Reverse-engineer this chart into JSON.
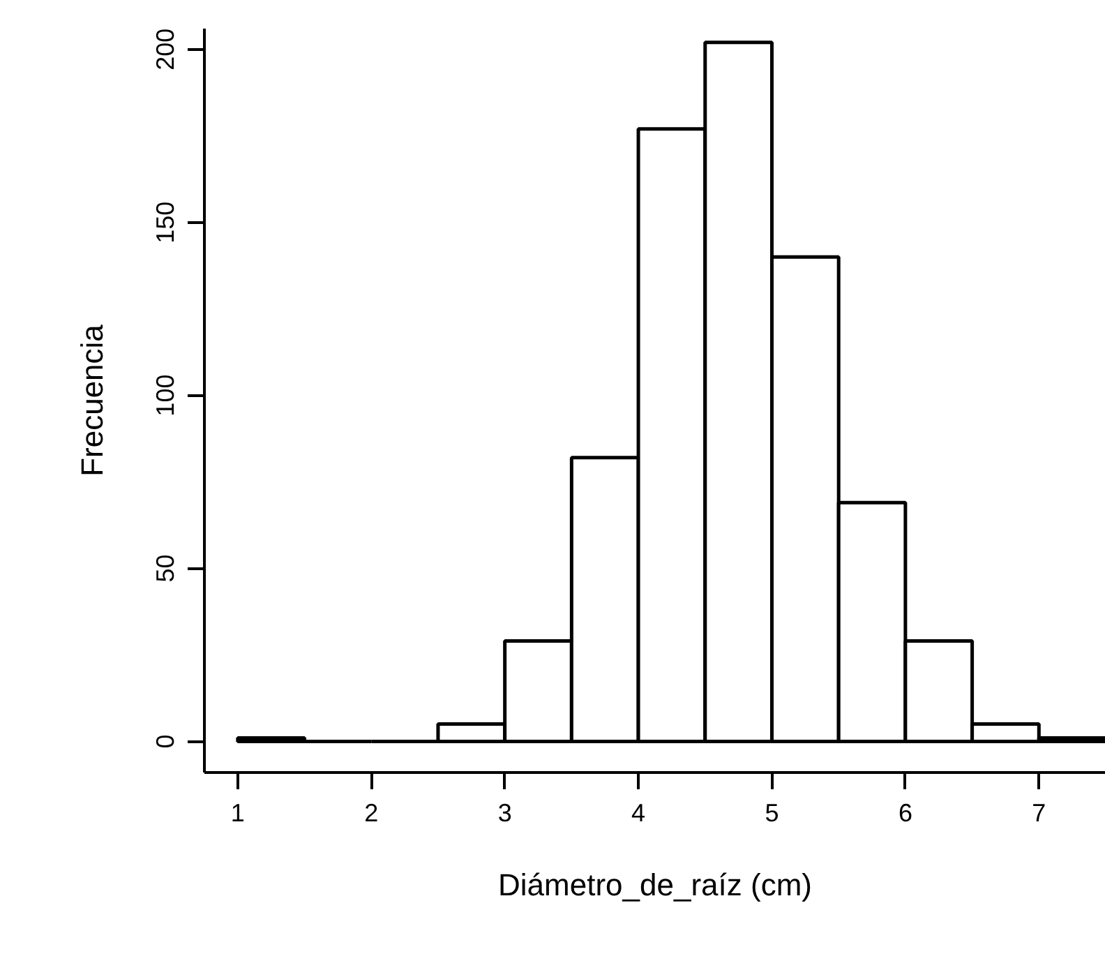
{
  "chart_data": {
    "type": "histogram",
    "xlabel": "Diámetro_de_raíz (cm)",
    "ylabel": "Frecuencia",
    "bins": [
      1,
      1.5,
      2,
      2.5,
      3,
      3.5,
      4,
      4.5,
      5,
      5.5,
      6,
      6.5,
      7,
      7.5
    ],
    "values": [
      1,
      0,
      0,
      5,
      29,
      82,
      177,
      202,
      140,
      69,
      29,
      5,
      1
    ],
    "xlim": [
      0.75,
      7.5
    ],
    "ylim": [
      -9,
      206
    ],
    "xticks": [
      1,
      2,
      3,
      4,
      5,
      6,
      7
    ],
    "yticks": [
      0,
      50,
      100,
      150,
      200
    ],
    "grid": false
  }
}
